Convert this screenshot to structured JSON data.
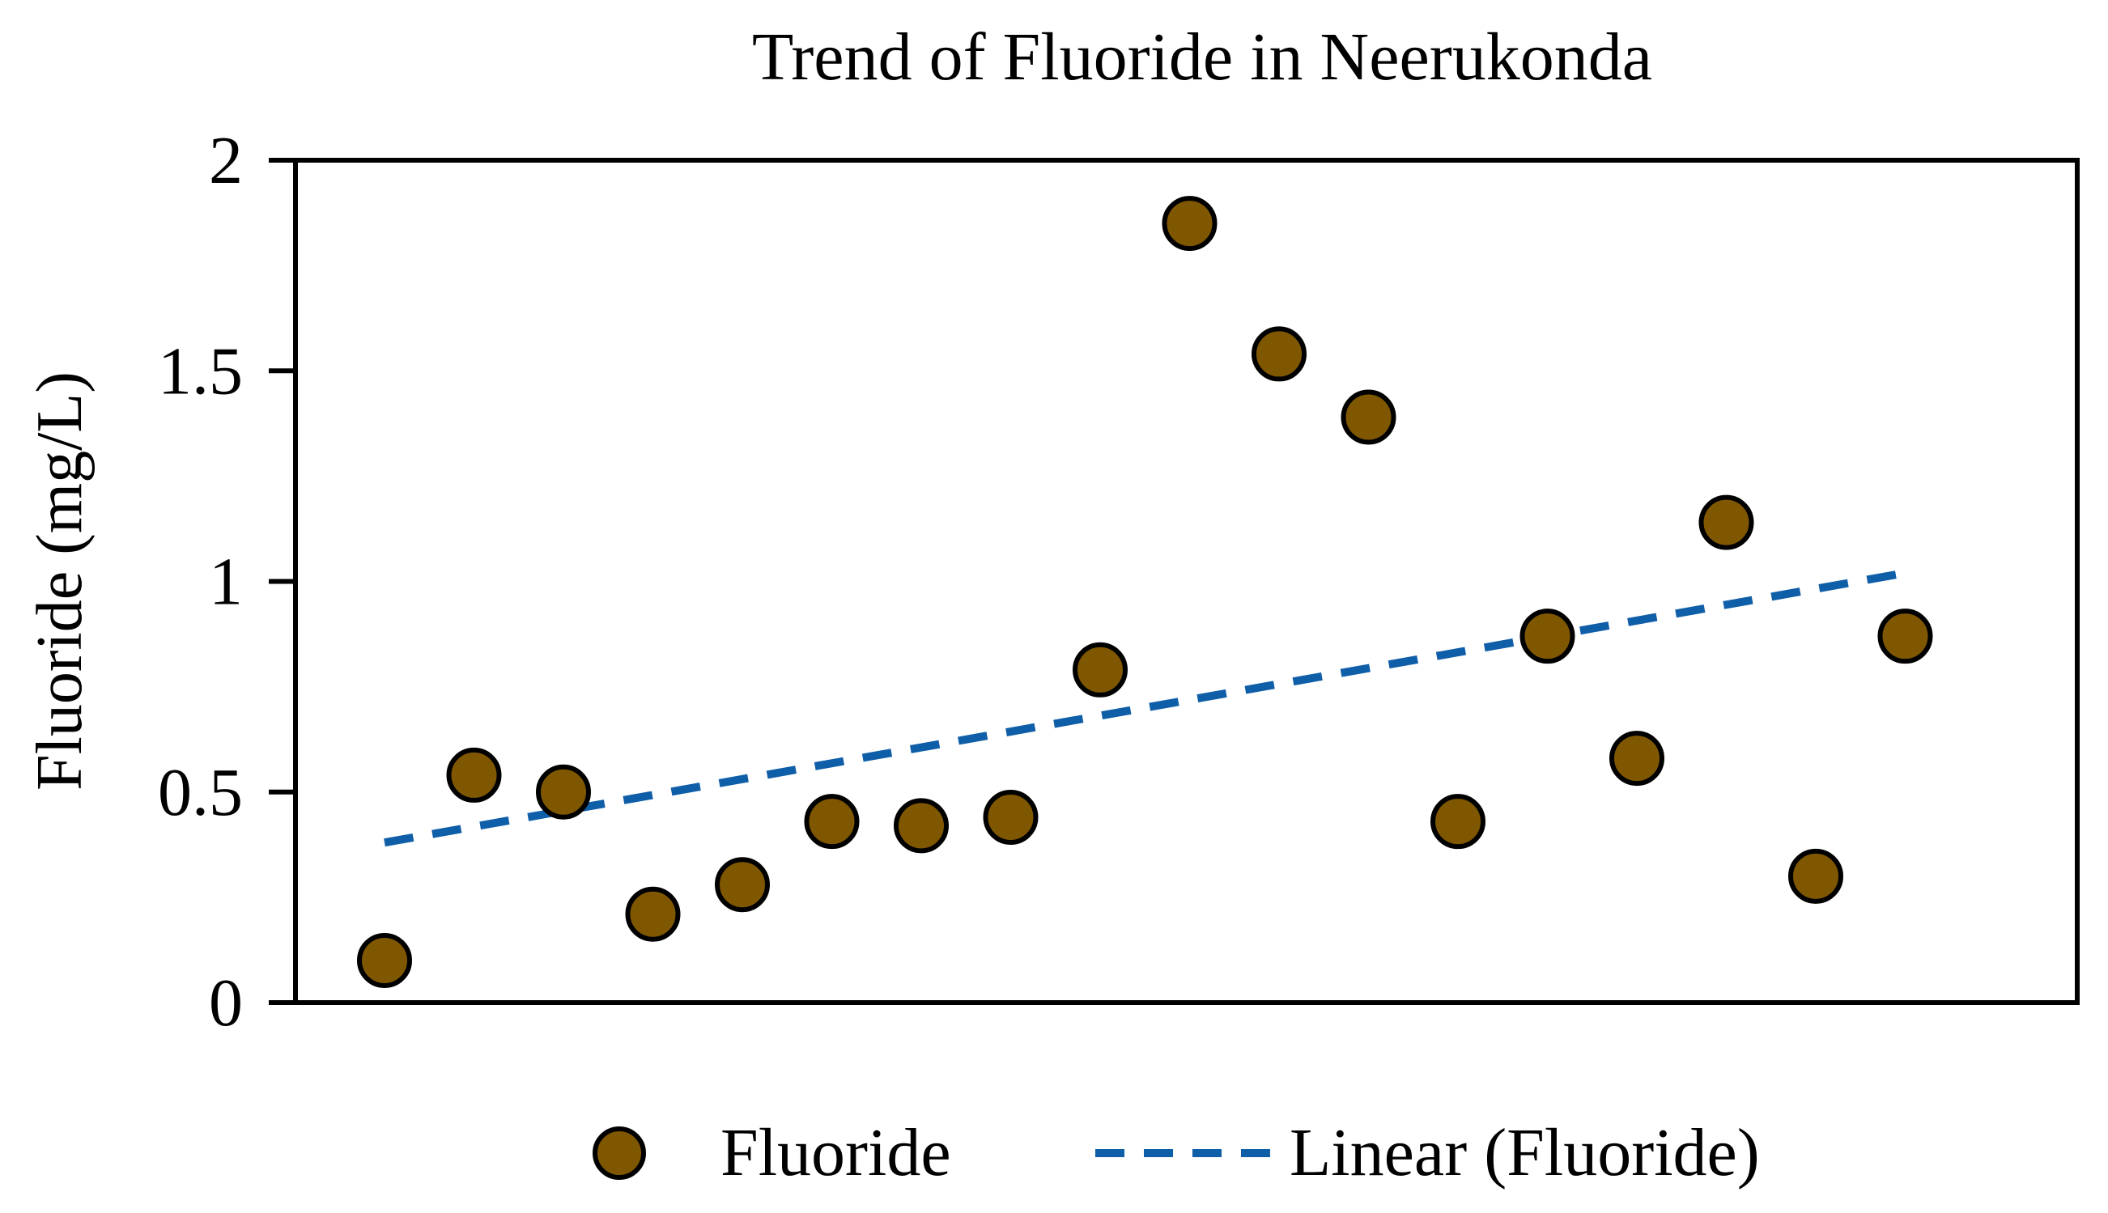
{
  "chart_data": {
    "type": "scatter",
    "title": "Trend of Fluoride in Neerukonda",
    "xlabel": "",
    "ylabel": "Fluoride (mg/L)",
    "ylim": [
      0,
      2
    ],
    "yticks": [
      "0",
      "0.5",
      "1",
      "1.5",
      "2"
    ],
    "grid": false,
    "legend_position": "bottom",
    "series": [
      {
        "name": "Fluoride",
        "color": "#7f5700",
        "marker": "circle",
        "x": [
          1,
          2,
          3,
          4,
          5,
          6,
          7,
          8,
          9,
          10,
          11,
          12,
          13,
          14,
          15,
          16,
          17,
          18
        ],
        "y": [
          0.1,
          0.54,
          0.5,
          0.21,
          0.28,
          0.43,
          0.42,
          0.44,
          0.79,
          1.85,
          1.54,
          1.39,
          0.43,
          0.87,
          0.58,
          1.14,
          0.3,
          0.87
        ]
      }
    ],
    "trendline": {
      "name": "Linear (Fluoride)",
      "type": "linear",
      "color": "#0f5ea8",
      "style": "dashed",
      "y_start": 0.38,
      "y_end": 1.02
    }
  }
}
